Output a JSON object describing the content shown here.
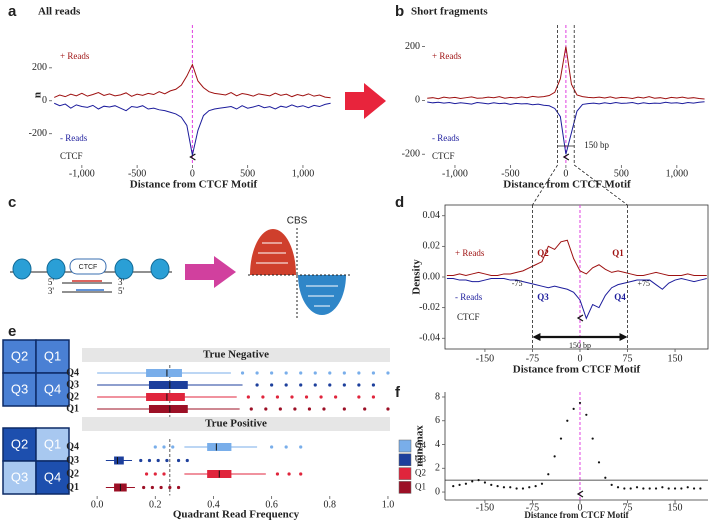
{
  "panel_labels": [
    "a",
    "b",
    "c",
    "d",
    "e",
    "f"
  ],
  "diagram": {
    "protein": "CTCF",
    "strand_top": [
      "5'",
      "3'"
    ],
    "strand_bottom": [
      "3'",
      "5'"
    ],
    "site": "CBS"
  },
  "quadrant_grids": [
    [
      "Q2",
      "Q1",
      "Q3",
      "Q4"
    ],
    [
      "Q2",
      "Q1",
      "Q3",
      "Q4"
    ]
  ],
  "chart_data": [
    {
      "type": "line",
      "title": "All reads",
      "x_label": "Distance from CTCF Motif",
      "y_label": "n",
      "x": [
        -1250,
        -1200,
        -1150,
        -1100,
        -1050,
        -1000,
        -950,
        -900,
        -850,
        -800,
        -750,
        -700,
        -650,
        -600,
        -550,
        -500,
        -450,
        -400,
        -350,
        -300,
        -250,
        -200,
        -150,
        -100,
        -50,
        0,
        50,
        100,
        150,
        200,
        250,
        300,
        350,
        400,
        450,
        500,
        550,
        600,
        650,
        700,
        750,
        800,
        850,
        900,
        950,
        1000,
        1050,
        1100,
        1150,
        1200,
        1250
      ],
      "series": [
        {
          "name": "+ Reads",
          "color": "#9e1111",
          "values": [
            20,
            35,
            25,
            40,
            30,
            45,
            28,
            38,
            50,
            32,
            42,
            30,
            36,
            48,
            27,
            40,
            33,
            45,
            38,
            55,
            42,
            60,
            70,
            95,
            150,
            220,
            120,
            80,
            55,
            45,
            40,
            35,
            50,
            30,
            44,
            38,
            28,
            42,
            36,
            30,
            46,
            33,
            40,
            25,
            38,
            30,
            42,
            28,
            35,
            22,
            18
          ]
        },
        {
          "name": "- Reads",
          "color": "#1c1c9c",
          "values": [
            -15,
            -30,
            -20,
            -45,
            -25,
            -35,
            -40,
            -28,
            -50,
            -33,
            -38,
            -30,
            -45,
            -60,
            -35,
            -40,
            -30,
            -50,
            -45,
            -55,
            -60,
            -70,
            -80,
            -100,
            -150,
            -330,
            -180,
            -90,
            -60,
            -50,
            -45,
            -40,
            -35,
            -50,
            -30,
            -45,
            -38,
            -28,
            -42,
            -36,
            -50,
            -33,
            -40,
            -25,
            -38,
            -30,
            -42,
            -28,
            -35,
            -22,
            -15
          ]
        }
      ],
      "xlim": [
        -1270,
        1290
      ],
      "ylim": [
        -390,
        460
      ],
      "xticks": [
        {
          "value": -1000,
          "label": "-1,000"
        },
        -500,
        0,
        500,
        {
          "value": 1000,
          "label": "1,000"
        }
      ],
      "yticks": [
        -200,
        0,
        200
      ],
      "vline": 0,
      "vline_color": "#e040e0",
      "motif_label": "CTCF"
    },
    {
      "type": "line",
      "title": "Short fragments",
      "x_label": "Distance from CTCF Motif",
      "x": [
        -1250,
        -1200,
        -1150,
        -1100,
        -1050,
        -1000,
        -950,
        -900,
        -850,
        -800,
        -750,
        -700,
        -650,
        -600,
        -550,
        -500,
        -450,
        -400,
        -350,
        -300,
        -250,
        -200,
        -150,
        -100,
        -50,
        0,
        50,
        100,
        150,
        200,
        250,
        300,
        350,
        400,
        450,
        500,
        550,
        600,
        650,
        700,
        750,
        800,
        850,
        900,
        950,
        1000,
        1050,
        1100,
        1150,
        1200,
        1250
      ],
      "series": [
        {
          "name": "+ Reads",
          "color": "#9e1111",
          "values": [
            8,
            10,
            6,
            12,
            9,
            11,
            7,
            10,
            13,
            8,
            9,
            12,
            10,
            14,
            8,
            11,
            9,
            13,
            10,
            15,
            12,
            14,
            18,
            30,
            80,
            200,
            60,
            20,
            14,
            11,
            10,
            12,
            9,
            13,
            8,
            11,
            10,
            7,
            12,
            9,
            14,
            8,
            10,
            6,
            11,
            9,
            12,
            8,
            10,
            7,
            5
          ]
        },
        {
          "name": "- Reads",
          "color": "#1c1c9c",
          "values": [
            -6,
            -9,
            -7,
            -10,
            -8,
            -12,
            -9,
            -11,
            -14,
            -8,
            -10,
            -13,
            -9,
            -12,
            -10,
            -15,
            -11,
            -13,
            -12,
            -16,
            -14,
            -18,
            -20,
            -30,
            -60,
            -200,
            -120,
            -40,
            -15,
            -12,
            -10,
            -13,
            -9,
            -12,
            -8,
            -11,
            -10,
            -8,
            -13,
            -9,
            -12,
            -10,
            -11,
            -7,
            -10,
            -9,
            -12,
            -8,
            -10,
            -7,
            -5
          ]
        }
      ],
      "xlim": [
        -1270,
        1290
      ],
      "ylim": [
        -240,
        280
      ],
      "xticks": [
        {
          "value": -1000,
          "label": "-1,000"
        },
        -500,
        0,
        500,
        {
          "value": 1000,
          "label": "1,000"
        }
      ],
      "yticks": [
        -200,
        0,
        200
      ],
      "vline": 0,
      "vline_color": "#e040e0",
      "motif_label": "CTCF",
      "guides": [
        -75,
        75
      ],
      "span_label": "150 bp"
    },
    {
      "type": "line",
      "x_label": "Distance from CTCF Motif",
      "y_label": "Density",
      "x": [
        -210,
        -200,
        -190,
        -180,
        -170,
        -160,
        -150,
        -140,
        -130,
        -120,
        -110,
        -100,
        -90,
        -80,
        -70,
        -60,
        -50,
        -40,
        -30,
        -20,
        -10,
        0,
        10,
        20,
        30,
        40,
        50,
        60,
        70,
        80,
        90,
        100,
        110,
        120,
        130,
        140,
        150,
        160,
        170,
        180,
        190,
        200
      ],
      "series": [
        {
          "name": "+ Reads",
          "color": "#9e1111",
          "values": [
            0.001,
            0.001,
            0.002,
            0.001,
            0.002,
            0.003,
            0.002,
            0.001,
            0.001,
            0.002,
            0.002,
            0.003,
            0.004,
            0.006,
            0.008,
            0.01,
            0.02,
            0.018,
            0.023,
            0.024,
            0.012,
            0.004,
            0.002,
            0.006,
            0.008,
            0.005,
            0.003,
            0.004,
            0.003,
            0.002,
            0.001,
            0.001,
            0.002,
            0.003,
            0.002,
            0.001,
            0.001,
            0.001,
            0.002,
            0.001,
            0.001,
            0.001
          ]
        },
        {
          "name": "- Reads",
          "color": "#1c1c9c",
          "values": [
            -0.001,
            -0.001,
            -0.002,
            -0.002,
            -0.003,
            -0.003,
            -0.002,
            -0.001,
            -0.001,
            -0.001,
            -0.002,
            -0.002,
            -0.003,
            -0.004,
            -0.005,
            -0.006,
            -0.007,
            -0.006,
            -0.007,
            -0.008,
            -0.01,
            -0.015,
            -0.027,
            -0.018,
            -0.02,
            -0.012,
            -0.007,
            -0.005,
            -0.004,
            -0.003,
            -0.002,
            -0.002,
            -0.002,
            -0.005,
            -0.008,
            -0.004,
            -0.002,
            -0.001,
            -0.002,
            -0.003,
            -0.002,
            -0.001
          ]
        }
      ],
      "xlim": [
        -213,
        202
      ],
      "ylim": [
        -0.047,
        0.047
      ],
      "xticks": [
        -150,
        -75,
        0,
        75,
        150
      ],
      "yticks": [
        -0.04,
        -0.02,
        {
          "value": 0,
          "label": "0.00"
        },
        0.02,
        0.04
      ],
      "vline": 0,
      "vline_color": "#e040e0",
      "motif_label": "CTCF",
      "guides": [
        -75,
        75
      ],
      "guide_labels": [
        "-75",
        "+75"
      ],
      "span_label": "150 bp",
      "quadrant_labels": [
        "Q1",
        "Q2",
        "Q3",
        "Q4"
      ]
    },
    {
      "type": "box",
      "x_label": "Quadrant Read Frequency",
      "xlim": [
        -0.052,
        1.007
      ],
      "xticks": [
        {
          "value": 0,
          "label": "0.0"
        },
        0.2,
        0.4,
        0.6,
        0.8,
        {
          "value": 1,
          "label": "1.0"
        }
      ],
      "vline": 0.25,
      "series": [
        {
          "name": "Q4",
          "color": "#79aeea"
        },
        {
          "name": "Q3",
          "color": "#1d3f9c"
        },
        {
          "name": "Q2",
          "color": "#e0253c"
        },
        {
          "name": "Q1",
          "color": "#9c1026"
        }
      ],
      "facets": [
        {
          "title": "True Negative",
          "categories": [
            "Q4",
            "Q3",
            "Q2",
            "Q1"
          ],
          "boxes": [
            {
              "whislo": 0,
              "q1": 0.17,
              "med": 0.24,
              "q3": 0.29,
              "whishi": 0.46,
              "fliers": [
                0.5,
                0.55,
                0.6,
                0.65,
                0.7,
                0.75,
                0.8,
                0.85,
                0.9,
                0.95,
                1.0
              ]
            },
            {
              "whislo": 0,
              "q1": 0.18,
              "med": 0.25,
              "q3": 0.31,
              "whishi": 0.5,
              "fliers": [
                0.55,
                0.6,
                0.65,
                0.7,
                0.75,
                0.8,
                0.85,
                0.9,
                0.95
              ]
            },
            {
              "whislo": 0,
              "q1": 0.17,
              "med": 0.24,
              "q3": 0.3,
              "whishi": 0.48,
              "fliers": [
                0.52,
                0.57,
                0.62,
                0.67,
                0.72,
                0.77,
                0.82,
                0.9,
                0.95
              ]
            },
            {
              "whislo": 0,
              "q1": 0.18,
              "med": 0.25,
              "q3": 0.31,
              "whishi": 0.49,
              "fliers": [
                0.53,
                0.58,
                0.63,
                0.68,
                0.73,
                0.78,
                0.85,
                0.92,
                1.0
              ]
            }
          ]
        },
        {
          "title": "True Positive",
          "categories": [
            "Q4",
            "Q3",
            "Q2",
            "Q1"
          ],
          "boxes": [
            {
              "whislo": 0.3,
              "q1": 0.38,
              "med": 0.41,
              "q3": 0.46,
              "whishi": 0.55,
              "fliers": [
                0.2,
                0.23,
                0.26,
                0.6,
                0.65,
                0.7
              ]
            },
            {
              "whislo": 0.03,
              "q1": 0.06,
              "med": 0.07,
              "q3": 0.09,
              "whishi": 0.12,
              "fliers": [
                0.15,
                0.18,
                0.21,
                0.24,
                0.28,
                0.31
              ]
            },
            {
              "whislo": 0.3,
              "q1": 0.38,
              "med": 0.42,
              "q3": 0.46,
              "whishi": 0.58,
              "fliers": [
                0.17,
                0.2,
                0.23,
                0.62,
                0.66,
                0.7
              ]
            },
            {
              "whislo": 0.03,
              "q1": 0.06,
              "med": 0.08,
              "q3": 0.1,
              "whishi": 0.13,
              "fliers": [
                0.16,
                0.19,
                0.22,
                0.25,
                0.28
              ]
            }
          ]
        }
      ]
    },
    {
      "type": "scatter",
      "x_label": "Distance from CTCF Motif",
      "y_label": "min/max",
      "x": [
        -200,
        -190,
        -180,
        -170,
        -160,
        -150,
        -140,
        -130,
        -120,
        -110,
        -100,
        -90,
        -80,
        -70,
        -60,
        -50,
        -40,
        -30,
        -20,
        -10,
        0,
        10,
        20,
        30,
        40,
        50,
        60,
        70,
        80,
        90,
        100,
        110,
        120,
        130,
        140,
        150,
        160,
        170,
        180,
        190
      ],
      "values": [
        0.5,
        0.6,
        0.7,
        0.9,
        1.0,
        0.8,
        0.6,
        0.5,
        0.4,
        0.4,
        0.3,
        0.3,
        0.4,
        0.5,
        0.7,
        1.5,
        3,
        4.5,
        6,
        7,
        7.5,
        6.5,
        4.5,
        2.5,
        1.2,
        0.6,
        0.4,
        0.3,
        0.3,
        0.4,
        0.3,
        0.3,
        0.3,
        0.4,
        0.3,
        0.3,
        0.3,
        0.4,
        0.3,
        0.3
      ],
      "color": "#111111",
      "xlim": [
        -213,
        202
      ],
      "ylim": [
        -0.67,
        8.42
      ],
      "xticks": [
        -150,
        -75,
        0,
        75,
        150
      ],
      "yticks": [
        0,
        2,
        4,
        6,
        8
      ],
      "hline": 1,
      "vline": 0,
      "vline_color": "#e040e0",
      "motif_label": "CTCF"
    }
  ]
}
